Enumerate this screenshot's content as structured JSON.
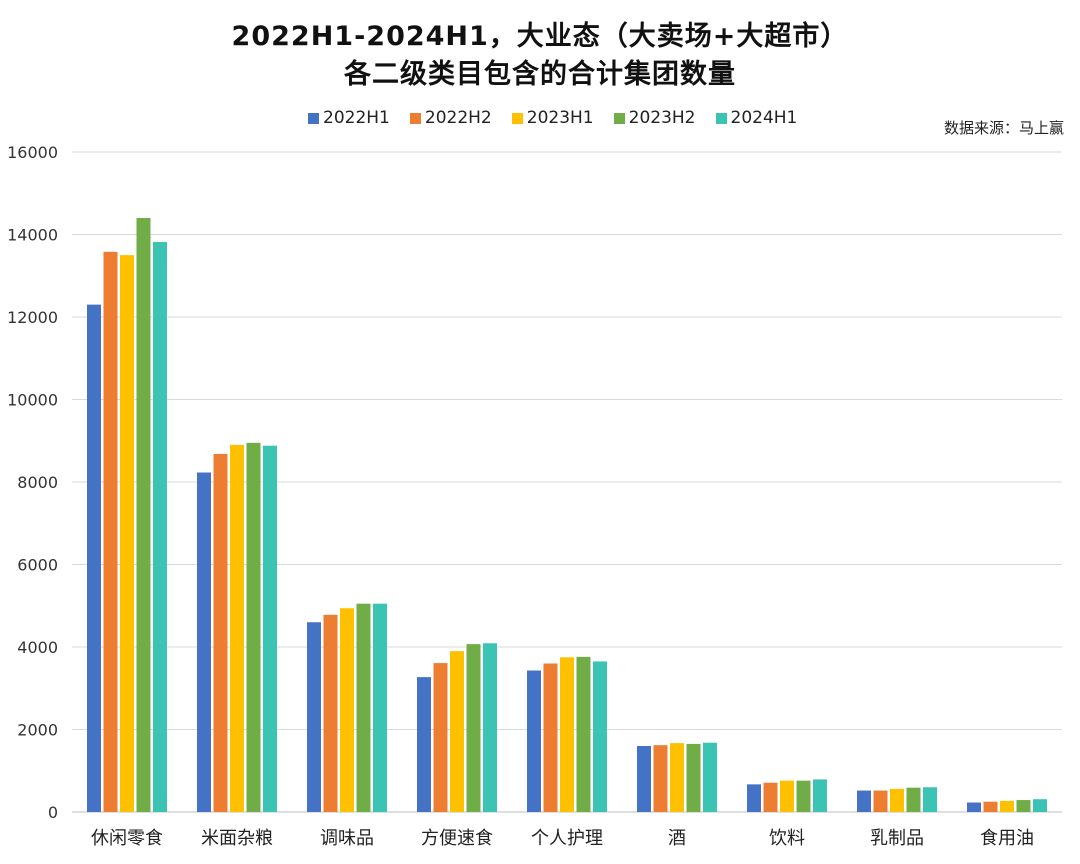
{
  "title_line1": "2022H1-2024H1，大业态（大卖场+大超市）",
  "title_line2": "各二级类目包含的合计集团数量",
  "source": "数据来源：马上赢",
  "chart_data": {
    "type": "bar",
    "categories": [
      "休闲零食",
      "米面杂粮",
      "调味品",
      "方便速食",
      "个人护理",
      "酒",
      "饮料",
      "乳制品",
      "食用油"
    ],
    "series": [
      {
        "name": "2022H1",
        "color": "#4472C4",
        "values": [
          12300,
          8230,
          4600,
          3270,
          3430,
          1600,
          670,
          520,
          230
        ]
      },
      {
        "name": "2022H2",
        "color": "#ED7D31",
        "values": [
          13580,
          8680,
          4780,
          3610,
          3600,
          1620,
          710,
          520,
          250
        ]
      },
      {
        "name": "2023H1",
        "color": "#FFC000",
        "values": [
          13500,
          8900,
          4940,
          3900,
          3750,
          1670,
          760,
          560,
          270
        ]
      },
      {
        "name": "2023H2",
        "color": "#70AD47",
        "values": [
          14400,
          8950,
          5050,
          4070,
          3760,
          1650,
          760,
          590,
          290
        ]
      },
      {
        "name": "2024H1",
        "color": "#3BC4B4",
        "values": [
          13820,
          8880,
          5050,
          4090,
          3650,
          1680,
          790,
          600,
          310
        ]
      }
    ],
    "yticks": [
      "0",
      "2000",
      "4000",
      "6000",
      "8000",
      "10000",
      "12000",
      "14000",
      "16000"
    ],
    "ylim": [
      0,
      16000
    ],
    "grid": true,
    "legend_position": "top"
  }
}
